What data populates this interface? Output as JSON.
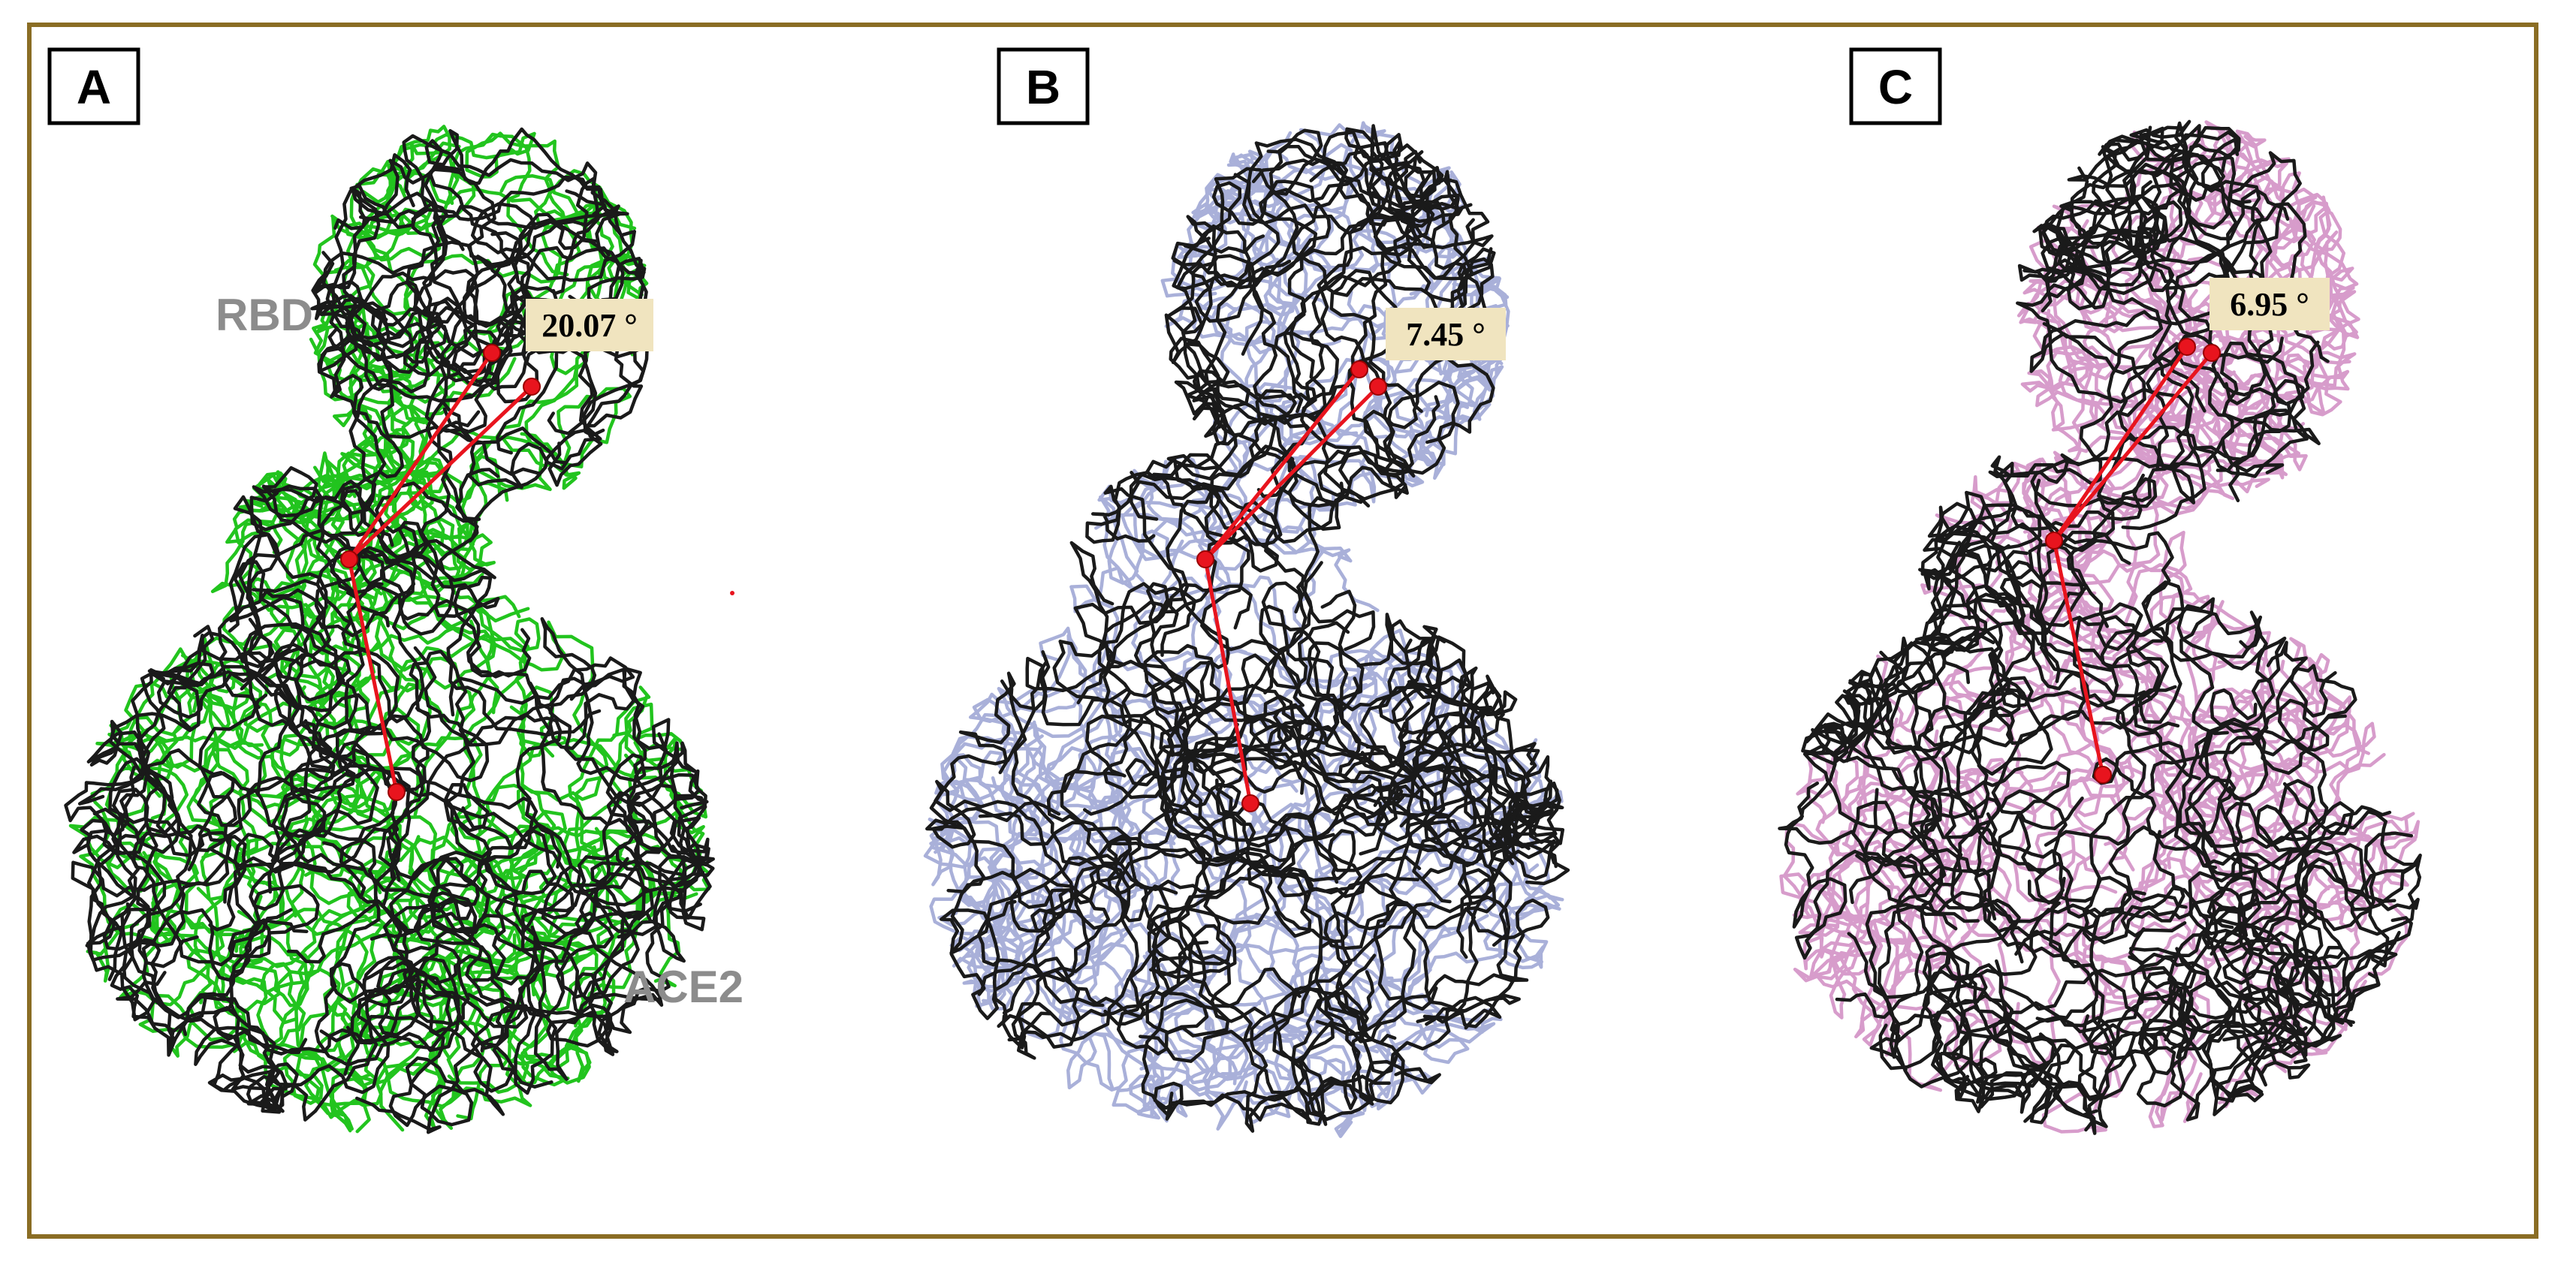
{
  "colors": {
    "frame": "#8a6d24",
    "reference_trace": "#1a1a1a",
    "angle_marker": "#e8141e",
    "angle_label_bg": "#f0e4bf",
    "domain_label": "#8c8c8c"
  },
  "panels": [
    {
      "letter": "A",
      "angle": "20.07 °",
      "trace_color": "#22c41e",
      "rbd_label": "RBD",
      "ace2_label": "ACE2"
    },
    {
      "letter": "B",
      "angle": "7.45 °",
      "trace_color": "#a9b0d9",
      "rbd_label": "",
      "ace2_label": ""
    },
    {
      "letter": "C",
      "angle": "6.95 °",
      "trace_color": "#d79ccb",
      "rbd_label": "",
      "ace2_label": ""
    }
  ]
}
